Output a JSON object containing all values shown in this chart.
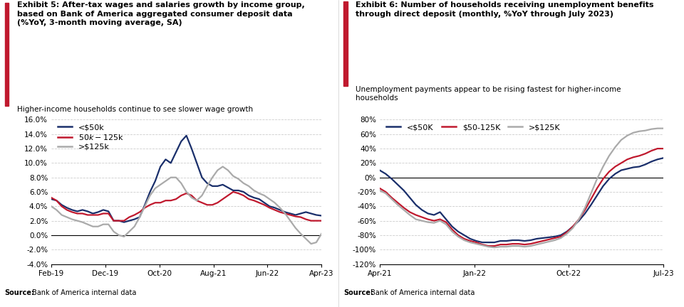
{
  "chart1": {
    "title_line1": "Exhibit 5: After-tax wages and salaries growth by income group,",
    "title_line2": "based on Bank of America aggregated consumer deposit data",
    "title_line3": "(%YoY, 3-month moving average, SA)",
    "subtitle": "Higher-income households continue to see slower wage growth",
    "source_bold": "Source:",
    "source_rest": "  Bank of America internal data",
    "legend": [
      "<$50k",
      "$50k-$125k",
      ">$125k"
    ],
    "colors": [
      "#1a2f6b",
      "#c0192e",
      "#aaaaaa"
    ],
    "x_labels": [
      "Feb-19",
      "Dec-19",
      "Oct-20",
      "Aug-21",
      "Jun-22",
      "Apr-23"
    ],
    "ylim": [
      -0.04,
      0.16
    ],
    "yticks": [
      -0.04,
      -0.02,
      0.0,
      0.02,
      0.04,
      0.06,
      0.08,
      0.1,
      0.12,
      0.14,
      0.16
    ],
    "series_low50k": [
      0.05,
      0.048,
      0.042,
      0.038,
      0.035,
      0.033,
      0.035,
      0.033,
      0.03,
      0.032,
      0.035,
      0.033,
      0.02,
      0.02,
      0.018,
      0.02,
      0.022,
      0.025,
      0.042,
      0.06,
      0.075,
      0.095,
      0.105,
      0.1,
      0.115,
      0.13,
      0.138,
      0.12,
      0.1,
      0.08,
      0.072,
      0.068,
      0.068,
      0.07,
      0.066,
      0.062,
      0.062,
      0.06,
      0.055,
      0.052,
      0.05,
      0.045,
      0.04,
      0.038,
      0.035,
      0.032,
      0.03,
      0.028,
      0.03,
      0.032,
      0.03,
      0.028,
      0.027
    ],
    "series_mid": [
      0.052,
      0.048,
      0.04,
      0.035,
      0.032,
      0.03,
      0.03,
      0.028,
      0.028,
      0.028,
      0.03,
      0.03,
      0.02,
      0.02,
      0.02,
      0.025,
      0.028,
      0.032,
      0.038,
      0.042,
      0.045,
      0.045,
      0.048,
      0.048,
      0.05,
      0.055,
      0.058,
      0.055,
      0.048,
      0.045,
      0.042,
      0.042,
      0.045,
      0.05,
      0.055,
      0.06,
      0.058,
      0.055,
      0.05,
      0.048,
      0.045,
      0.042,
      0.038,
      0.035,
      0.032,
      0.03,
      0.028,
      0.026,
      0.025,
      0.022,
      0.02,
      0.02,
      0.02
    ],
    "series_high": [
      0.04,
      0.035,
      0.028,
      0.025,
      0.022,
      0.02,
      0.018,
      0.015,
      0.012,
      0.012,
      0.015,
      0.015,
      0.005,
      0.0,
      -0.002,
      0.005,
      0.012,
      0.025,
      0.04,
      0.055,
      0.065,
      0.07,
      0.075,
      0.08,
      0.08,
      0.072,
      0.06,
      0.052,
      0.048,
      0.055,
      0.068,
      0.08,
      0.09,
      0.095,
      0.09,
      0.082,
      0.078,
      0.072,
      0.068,
      0.062,
      0.058,
      0.055,
      0.05,
      0.045,
      0.038,
      0.03,
      0.02,
      0.01,
      0.002,
      -0.005,
      -0.012,
      -0.01,
      0.002
    ]
  },
  "chart2": {
    "title_line1": "Exhibit 6: Number of households receiving unemployment benefits",
    "title_line2": "through direct deposit (monthly, %YoY through July 2023)",
    "title_line3": "",
    "subtitle": "Unemployment payments appear to be rising fastest for higher-income\nhouseholds",
    "source_bold": "Source:",
    "source_rest": "  Bank of America internal data",
    "legend": [
      "<$50K",
      "$50-125K",
      ">$125K"
    ],
    "colors": [
      "#1a2f6b",
      "#c0192e",
      "#aaaaaa"
    ],
    "x_labels": [
      "Apr-21",
      "Jan-22",
      "Oct-22",
      "Jul-23"
    ],
    "ylim": [
      -1.2,
      0.8
    ],
    "yticks": [
      -1.2,
      -1.0,
      -0.8,
      -0.6,
      -0.4,
      -0.2,
      0.0,
      0.2,
      0.4,
      0.6,
      0.8
    ],
    "series_low50k": [
      0.1,
      0.05,
      -0.02,
      -0.1,
      -0.18,
      -0.28,
      -0.38,
      -0.45,
      -0.5,
      -0.52,
      -0.48,
      -0.58,
      -0.68,
      -0.75,
      -0.8,
      -0.85,
      -0.88,
      -0.9,
      -0.9,
      -0.9,
      -0.88,
      -0.88,
      -0.87,
      -0.87,
      -0.88,
      -0.87,
      -0.85,
      -0.84,
      -0.83,
      -0.82,
      -0.8,
      -0.75,
      -0.68,
      -0.6,
      -0.5,
      -0.38,
      -0.25,
      -0.12,
      -0.02,
      0.05,
      0.1,
      0.12,
      0.14,
      0.15,
      0.18,
      0.22,
      0.25,
      0.27
    ],
    "series_mid": [
      -0.15,
      -0.2,
      -0.28,
      -0.35,
      -0.42,
      -0.48,
      -0.52,
      -0.55,
      -0.58,
      -0.6,
      -0.58,
      -0.62,
      -0.72,
      -0.8,
      -0.85,
      -0.88,
      -0.9,
      -0.93,
      -0.95,
      -0.95,
      -0.93,
      -0.93,
      -0.92,
      -0.92,
      -0.93,
      -0.92,
      -0.9,
      -0.88,
      -0.86,
      -0.84,
      -0.82,
      -0.76,
      -0.68,
      -0.58,
      -0.45,
      -0.3,
      -0.15,
      -0.02,
      0.08,
      0.15,
      0.2,
      0.25,
      0.28,
      0.3,
      0.33,
      0.37,
      0.4,
      0.4
    ],
    "series_high": [
      -0.18,
      -0.22,
      -0.3,
      -0.38,
      -0.45,
      -0.52,
      -0.58,
      -0.6,
      -0.62,
      -0.63,
      -0.6,
      -0.65,
      -0.75,
      -0.82,
      -0.87,
      -0.9,
      -0.92,
      -0.94,
      -0.96,
      -0.97,
      -0.96,
      -0.96,
      -0.95,
      -0.95,
      -0.96,
      -0.95,
      -0.93,
      -0.91,
      -0.89,
      -0.87,
      -0.84,
      -0.78,
      -0.7,
      -0.58,
      -0.42,
      -0.22,
      -0.02,
      0.15,
      0.3,
      0.42,
      0.52,
      0.58,
      0.62,
      0.64,
      0.65,
      0.67,
      0.68,
      0.68
    ]
  },
  "accent_color": "#c0192e",
  "background_color": "#ffffff",
  "grid_color": "#cccccc",
  "text_color": "#000000"
}
